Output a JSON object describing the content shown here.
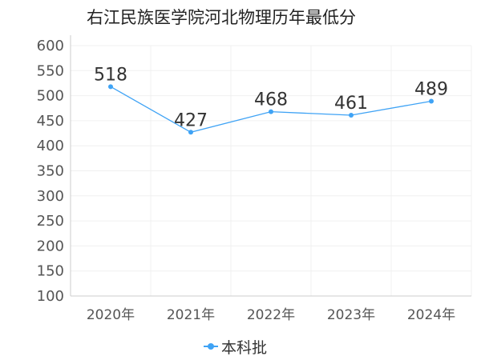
{
  "colors": {
    "series": "#3fa3f5",
    "axis": "#cccccc",
    "grid": "#f0f0f0"
  },
  "chart_data": {
    "type": "line",
    "title": "右江民族医学院河北物理历年最低分",
    "xlabel": "",
    "ylabel": "",
    "categories": [
      "2020年",
      "2021年",
      "2022年",
      "2023年",
      "2024年"
    ],
    "series": [
      {
        "name": "本科批",
        "values": [
          518,
          427,
          468,
          461,
          489
        ]
      }
    ],
    "ylim": [
      100,
      600
    ],
    "yticks": [
      "100",
      "150",
      "200",
      "250",
      "300",
      "350",
      "400",
      "450",
      "500",
      "550",
      "600"
    ],
    "grid": true,
    "legend": "bottom-center"
  }
}
